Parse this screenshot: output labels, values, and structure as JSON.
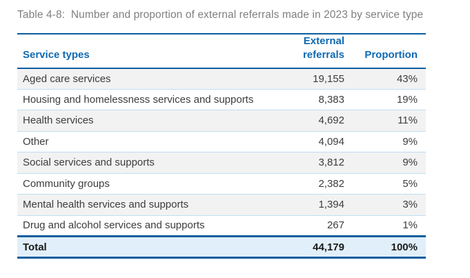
{
  "caption": "Table 4-8:  Number and proportion of external referrals made in 2023 by service type",
  "table": {
    "columns": {
      "service": "Service types",
      "referrals": "External\nreferrals",
      "proportion": "Proportion"
    },
    "rows": [
      {
        "service": "Aged care services",
        "referrals": "19,155",
        "proportion": "43%"
      },
      {
        "service": "Housing and homelessness services and supports",
        "referrals": "8,383",
        "proportion": "19%"
      },
      {
        "service": "Health services",
        "referrals": "4,692",
        "proportion": "11%"
      },
      {
        "service": "Other",
        "referrals": "4,094",
        "proportion": "9%"
      },
      {
        "service": "Social services and supports",
        "referrals": "3,812",
        "proportion": "9%"
      },
      {
        "service": "Community groups",
        "referrals": "2,382",
        "proportion": "5%"
      },
      {
        "service": "Mental health services and supports",
        "referrals": "1,394",
        "proportion": "3%"
      },
      {
        "service": "Drug and alcohol services and supports",
        "referrals": "267",
        "proportion": "1%"
      }
    ],
    "total": {
      "label": "Total",
      "referrals": "44,179",
      "proportion": "100%"
    }
  },
  "colors": {
    "accent_blue_rule": "#0c5e9e",
    "header_text_blue": "#0f6ab2",
    "caption_gray": "#7f7f7f",
    "body_text": "#3c3c3c",
    "alt_row_gray": "#f2f2f2",
    "row_separator_blue": "#bedff2",
    "total_row_bg": "#e0effa"
  }
}
